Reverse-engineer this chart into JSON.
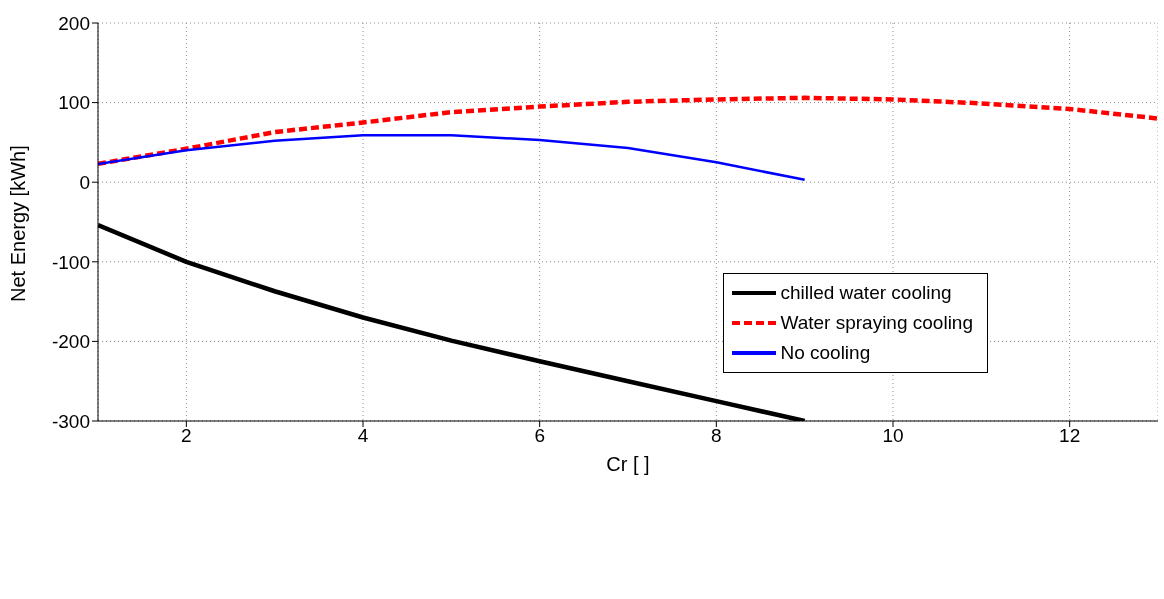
{
  "chart_data": {
    "type": "line",
    "xlabel": "Cr [ ]",
    "ylabel": "Net Energy [kWh]",
    "x": [
      1,
      2,
      3,
      4,
      5,
      6,
      7,
      8,
      9,
      10,
      11,
      12,
      13
    ],
    "xlim": [
      1,
      13
    ],
    "xticks": [
      2,
      4,
      6,
      8,
      10,
      12
    ],
    "ylim": [
      -300,
      200
    ],
    "yticks": [
      -300,
      -200,
      -100,
      0,
      100,
      200
    ],
    "grid": true,
    "legend": "right",
    "marker": "none",
    "series": [
      {
        "name": "chilled water cooling",
        "color": "#000000",
        "line_style": "solid",
        "values": [
          -54,
          -100,
          -137,
          -170,
          -199,
          -225,
          -250,
          -275,
          -300,
          null,
          null,
          null,
          null
        ]
      },
      {
        "name": "Water spraying cooling",
        "color": "#ff0000",
        "line_style": "dashed",
        "values": [
          23,
          42,
          63,
          75,
          88,
          95,
          101,
          104,
          106,
          104,
          99,
          92,
          80
        ]
      },
      {
        "name": "No cooling",
        "color": "#0000ff",
        "line_style": "solid",
        "values": [
          23,
          40,
          52,
          59,
          59,
          53,
          43,
          25,
          3,
          null,
          null,
          null,
          null
        ]
      }
    ]
  }
}
